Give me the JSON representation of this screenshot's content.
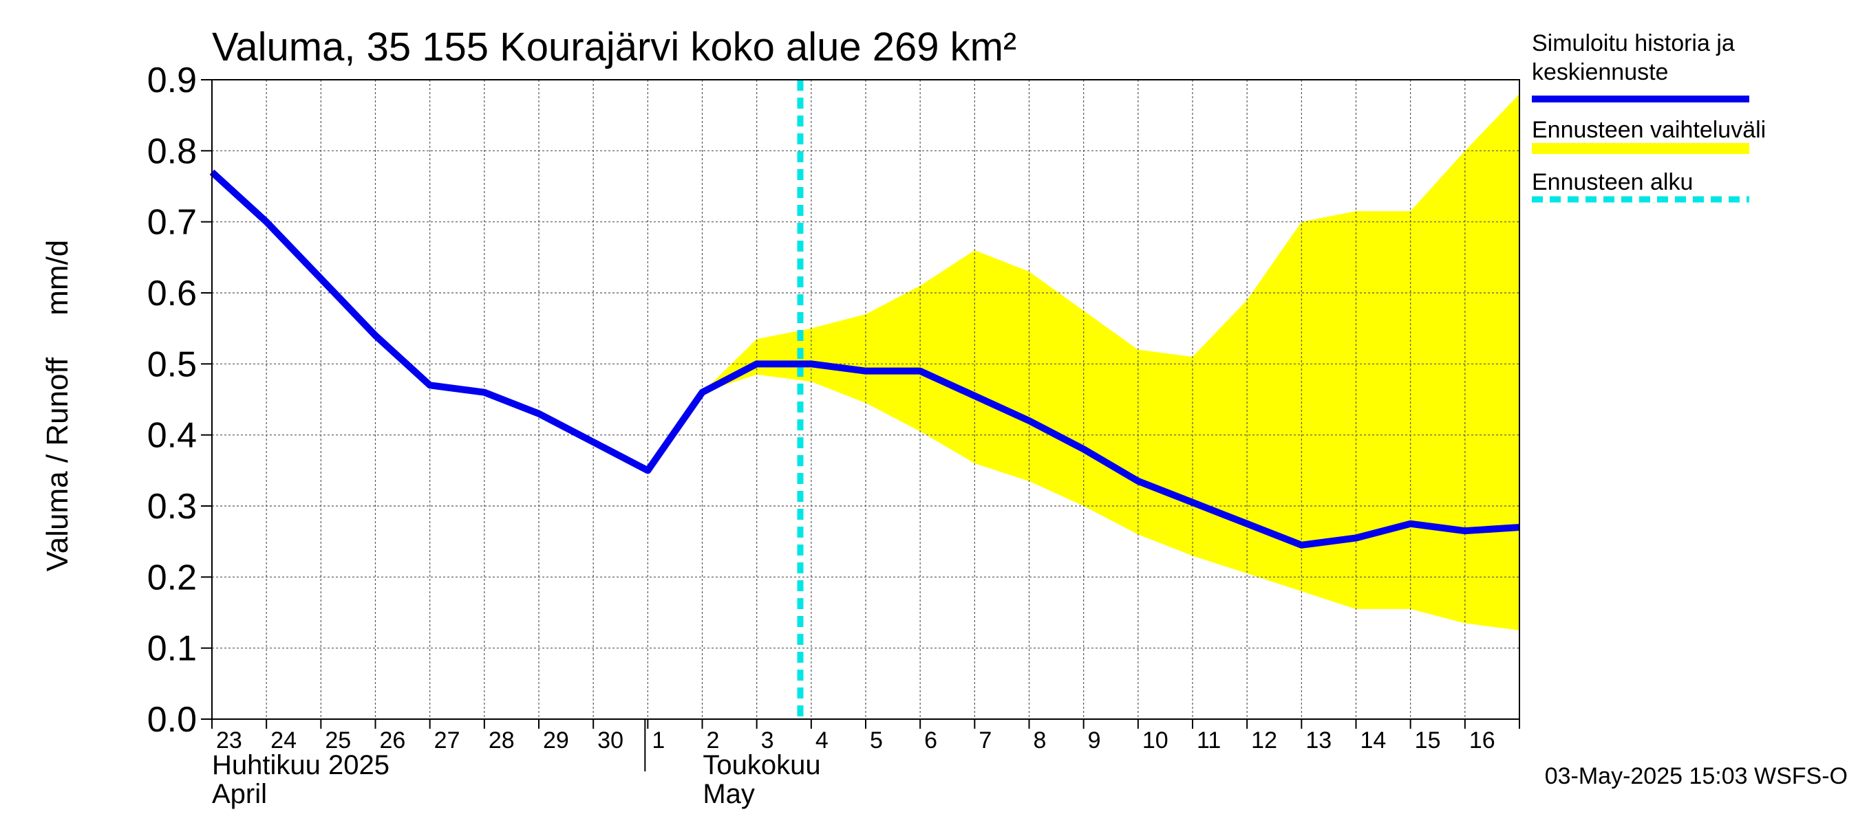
{
  "chart_data": {
    "type": "line",
    "title": "Valuma, 35 155 Kourajärvi koko alue 269 km²",
    "ylabel": "Valuma / Runoff     mm/d",
    "xlabel": "",
    "ylim": [
      0.0,
      0.9
    ],
    "yticks": [
      "0.0",
      "0.1",
      "0.2",
      "0.3",
      "0.4",
      "0.5",
      "0.6",
      "0.7",
      "0.8",
      "0.9"
    ],
    "grid": true,
    "day_labels": [
      "23",
      "24",
      "25",
      "26",
      "27",
      "28",
      "29",
      "30",
      "1",
      "2",
      "3",
      "4",
      "5",
      "6",
      "7",
      "8",
      "9",
      "10",
      "11",
      "12",
      "13",
      "14",
      "15",
      "16"
    ],
    "month_labels": [
      {
        "line1": "Huhtikuu  2025",
        "line2": "April",
        "start_day_index": 0
      },
      {
        "line1": "Toukokuu",
        "line2": "May",
        "start_day_index": 8
      }
    ],
    "forecast_start_day": 10.8,
    "series": [
      {
        "name": "Simuloitu historia ja keskiennuste",
        "color": "#0000ee",
        "x": [
          0,
          1,
          2,
          3,
          4,
          5,
          6,
          7,
          8,
          9,
          10,
          11,
          12,
          13,
          14,
          15,
          16,
          17,
          18,
          19,
          20,
          21,
          22,
          23,
          24
        ],
        "values": [
          0.77,
          0.7,
          0.62,
          0.54,
          0.47,
          0.46,
          0.43,
          0.39,
          0.35,
          0.46,
          0.5,
          0.5,
          0.49,
          0.49,
          0.455,
          0.42,
          0.38,
          0.335,
          0.305,
          0.275,
          0.245,
          0.255,
          0.275,
          0.265,
          0.27
        ]
      }
    ],
    "band": {
      "name": "Ennusteen vaihteluväli",
      "color": "#ffff00",
      "x": [
        9,
        10,
        11,
        12,
        13,
        14,
        15,
        16,
        17,
        18,
        19,
        20,
        21,
        22,
        23,
        24
      ],
      "upper": [
        0.46,
        0.535,
        0.55,
        0.57,
        0.61,
        0.66,
        0.63,
        0.575,
        0.52,
        0.51,
        0.59,
        0.7,
        0.715,
        0.715,
        0.8,
        0.88
      ],
      "lower": [
        0.46,
        0.485,
        0.475,
        0.445,
        0.405,
        0.36,
        0.335,
        0.3,
        0.26,
        0.23,
        0.205,
        0.18,
        0.155,
        0.155,
        0.135,
        0.125
      ]
    },
    "legend": {
      "position": "right",
      "entries": [
        {
          "label_line1": "Simuloitu historia ja",
          "label_line2": "keskiennuste",
          "color": "#0000ee",
          "style": "solid"
        },
        {
          "label_line1": "Ennusteen vaihteluväli",
          "label_line2": "",
          "color": "#ffff00",
          "style": "band"
        },
        {
          "label_line1": "Ennusteen alku",
          "label_line2": "",
          "color": "#00e5e5",
          "style": "dashed"
        }
      ]
    },
    "timestamp": "03-May-2025 15:03 WSFS-O"
  }
}
